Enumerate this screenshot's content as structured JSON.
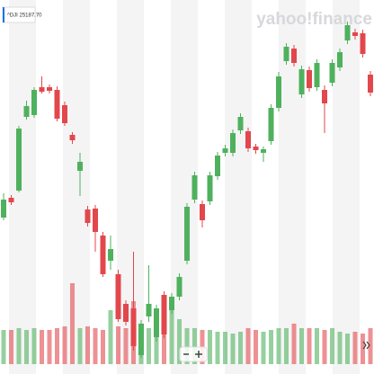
{
  "label": "^DJI 25187.70",
  "logo": "yahoo!finance",
  "chart_data": {
    "type": "candlestick",
    "up_color": "#4fb15e",
    "down_color": "#e2474c",
    "ylim": [
      23620,
      25700
    ],
    "vlim": [
      0,
      100
    ],
    "open": [
      24490,
      24600,
      24640,
      25050,
      25060,
      25215,
      25215,
      25200,
      25115,
      24950,
      24750,
      24535,
      24540,
      24390,
      24250,
      24175,
      24010,
      23985,
      23725,
      23940,
      23825,
      24060,
      23975,
      24050,
      24250,
      24590,
      24565,
      24580,
      24720,
      24850,
      24850,
      24975,
      24970,
      24885,
      24850,
      24915,
      25100,
      25360,
      25430,
      25175,
      25310,
      25215,
      25200,
      25240,
      25325,
      25475,
      25520,
      25515,
      25285
    ],
    "high": [
      24625,
      24615,
      25000,
      25140,
      25215,
      25275,
      25230,
      25220,
      25135,
      24965,
      24850,
      24555,
      24560,
      24410,
      24390,
      24200,
      24030,
      24300,
      23920,
      24225,
      24005,
      24080,
      24070,
      24180,
      24570,
      24745,
      24585,
      24745,
      24855,
      24895,
      24980,
      25070,
      24990,
      24900,
      24885,
      25120,
      25300,
      25460,
      25450,
      25335,
      25330,
      25370,
      25225,
      25370,
      25430,
      25580,
      25540,
      25535,
      25305
    ],
    "low": [
      24475,
      24560,
      24630,
      25035,
      25045,
      25180,
      25180,
      25025,
      25000,
      24900,
      24610,
      24440,
      24300,
      24160,
      24200,
      23910,
      23890,
      23750,
      23710,
      23910,
      23800,
      23820,
      23955,
      24030,
      24230,
      24570,
      24435,
      24560,
      24700,
      24830,
      24830,
      24955,
      24855,
      24845,
      24800,
      24895,
      25080,
      25340,
      25330,
      25155,
      25190,
      25195,
      24960,
      25220,
      25305,
      25455,
      25480,
      25380,
      25165
    ],
    "close": [
      24590,
      24575,
      24985,
      25110,
      25200,
      25190,
      25195,
      25040,
      25015,
      24920,
      24800,
      24460,
      24410,
      24175,
      24315,
      23925,
      23910,
      23775,
      23900,
      24010,
      23985,
      23840,
      24050,
      24160,
      24550,
      24725,
      24475,
      24725,
      24835,
      24875,
      24960,
      25050,
      24875,
      24865,
      24870,
      25100,
      25275,
      25440,
      25350,
      25315,
      25210,
      25350,
      25125,
      25350,
      25410,
      25560,
      25500,
      25400,
      25185
    ],
    "volume": [
      38,
      38,
      40,
      38,
      40,
      38,
      38,
      40,
      42,
      90,
      40,
      42,
      40,
      38,
      60,
      42,
      40,
      70,
      45,
      40,
      42,
      38,
      75,
      50,
      40,
      40,
      38,
      38,
      36,
      36,
      34,
      36,
      40,
      38,
      36,
      38,
      40,
      40,
      45,
      40,
      40,
      40,
      38,
      40,
      36,
      34,
      36,
      34,
      40
    ]
  }
}
